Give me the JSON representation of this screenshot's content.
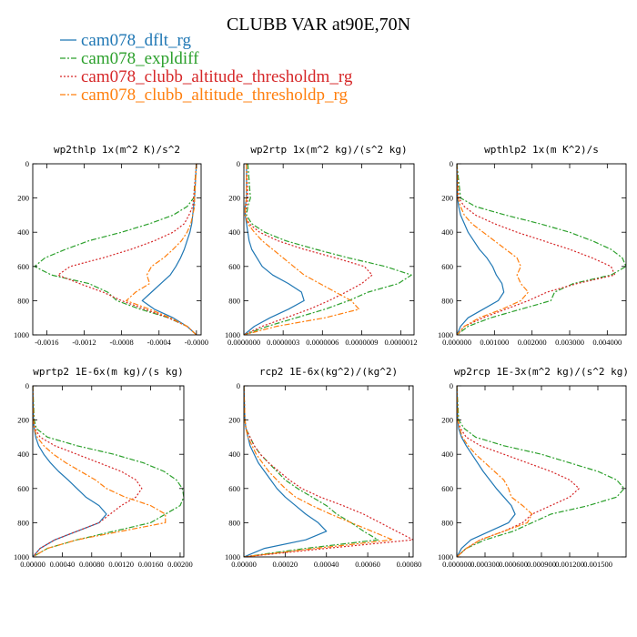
{
  "figure": {
    "title": "CLUBB VAR at90E,70N",
    "legend": [
      {
        "label": "cam078_dflt_rg",
        "color": "#1f77b4",
        "dash": "solid"
      },
      {
        "label": "cam078_expldiff",
        "color": "#2ca02c",
        "dash": "dashdot"
      },
      {
        "label": "cam078_clubb_altitude_thresholdm_rg",
        "color": "#d62728",
        "dash": "dot"
      },
      {
        "label": "cam078_clubb_altitude_thresholdp_rg",
        "color": "#ff7f0e",
        "dash": "dashdot"
      }
    ]
  },
  "chart_data": [
    {
      "type": "line",
      "title": "wp2thlp  1x(m^2 K)/s^2",
      "xlim": [
        -0.00175,
        5e-05
      ],
      "ylim": [
        0,
        1000
      ],
      "yticks": [
        0,
        200,
        400,
        600,
        800,
        1000
      ],
      "xticks": [
        {
          "v": -0.0016,
          "label": "-0.0016"
        },
        {
          "v": -0.0012,
          "label": "-0.0012"
        },
        {
          "v": -0.0008,
          "label": "-0.0008"
        },
        {
          "v": -0.0004,
          "label": "-0.0004"
        },
        {
          "v": 0.0,
          "label": "-0.0000"
        }
      ],
      "y": [
        0,
        200,
        250,
        300,
        350,
        400,
        450,
        500,
        550,
        600,
        650,
        700,
        750,
        800,
        850,
        900,
        950,
        1000
      ],
      "series": [
        {
          "name": "cam078_dflt_rg",
          "values": [
            0,
            -2e-05,
            -3e-05,
            -4e-05,
            -5e-05,
            -7e-05,
            -0.0001,
            -0.00013,
            -0.00017,
            -0.00022,
            -0.00028,
            -0.00038,
            -0.00048,
            -0.00058,
            -0.00045,
            -0.00025,
            -0.0001,
            0
          ]
        },
        {
          "name": "cam078_expldiff",
          "values": [
            0,
            -3e-05,
            -0.0001,
            -0.00025,
            -0.0005,
            -0.0008,
            -0.00115,
            -0.0014,
            -0.00162,
            -0.00173,
            -0.00155,
            -0.00115,
            -0.00095,
            -0.00085,
            -0.0006,
            -0.0003,
            -0.0001,
            0
          ]
        },
        {
          "name": "cam078_clubb_altitude_thresholdm_rg",
          "values": [
            0,
            -3e-05,
            -4e-05,
            -8e-05,
            -0.00013,
            -0.00025,
            -0.00045,
            -0.0007,
            -0.001,
            -0.00135,
            -0.00148,
            -0.00125,
            -0.001,
            -0.0008,
            -0.00055,
            -0.0003,
            -0.0001,
            0
          ]
        },
        {
          "name": "cam078_clubb_altitude_thresholdp_rg",
          "values": [
            0,
            -2e-05,
            -2e-05,
            -4e-05,
            -6e-05,
            -0.0001,
            -0.00016,
            -0.00025,
            -0.00035,
            -0.00048,
            -0.00053,
            -0.0005,
            -0.00065,
            -0.00075,
            -0.0005,
            -0.00028,
            -0.0001,
            0
          ]
        }
      ]
    },
    {
      "type": "line",
      "title": "wp2rtp  1x(m^2 kg)/(s^2 kg)",
      "xlim": [
        0,
        1.3e-06
      ],
      "ylim": [
        0,
        1000
      ],
      "yticks": [
        0,
        200,
        400,
        600,
        800,
        1000
      ],
      "xticks": [
        {
          "v": 0,
          "label": "0.0000000"
        },
        {
          "v": 3e-07,
          "label": "0.0000003"
        },
        {
          "v": 6e-07,
          "label": "0.0000006"
        },
        {
          "v": 9e-07,
          "label": "0.0000009"
        },
        {
          "v": 1.2e-06,
          "label": "0.0000012"
        }
      ],
      "y": [
        0,
        200,
        250,
        300,
        350,
        400,
        450,
        500,
        550,
        600,
        650,
        700,
        750,
        800,
        850,
        900,
        950,
        1000
      ],
      "series": [
        {
          "name": "cam078_dflt_rg",
          "values": [
            2e-08,
            2e-08,
            1e-08,
            1e-08,
            2e-08,
            3e-08,
            4e-08,
            6e-08,
            1e-07,
            1.4e-07,
            2.2e-07,
            3.4e-07,
            4.4e-07,
            4.6e-07,
            3.4e-07,
            2e-07,
            8e-08,
            0
          ]
        },
        {
          "name": "cam078_expldiff",
          "values": [
            3e-08,
            5e-08,
            3e-08,
            2e-08,
            6e-08,
            1.6e-07,
            3.2e-07,
            5.5e-07,
            8e-07,
            1.08e-06,
            1.28e-06,
            1.18e-06,
            9.5e-07,
            8e-07,
            6.2e-07,
            4e-07,
            1.8e-07,
            0
          ]
        },
        {
          "name": "cam078_clubb_altitude_thresholdm_rg",
          "values": [
            2e-08,
            3e-08,
            2e-08,
            1e-08,
            4e-08,
            1.2e-07,
            2.6e-07,
            4.6e-07,
            7e-07,
            9.2e-07,
            9.8e-07,
            9e-07,
            7.8e-07,
            6.5e-07,
            5e-07,
            3.2e-07,
            1.4e-07,
            0
          ]
        },
        {
          "name": "cam078_clubb_altitude_thresholdp_rg",
          "values": [
            2e-08,
            2e-08,
            1e-08,
            1e-08,
            3e-08,
            8e-08,
            1.4e-07,
            2.2e-07,
            3e-07,
            3.8e-07,
            4.6e-07,
            5.8e-07,
            7e-07,
            8.2e-07,
            8.8e-07,
            6.2e-07,
            2.5e-07,
            0
          ]
        }
      ]
    },
    {
      "type": "line",
      "title": "wpthlp2  1x(m K^2)/s",
      "xlim": [
        0,
        0.0045
      ],
      "ylim": [
        0,
        1000
      ],
      "yticks": [
        0,
        200,
        400,
        600,
        800,
        1000
      ],
      "xticks": [
        {
          "v": 0,
          "label": "0.000000"
        },
        {
          "v": 0.001,
          "label": "0.001000"
        },
        {
          "v": 0.002,
          "label": "0.002000"
        },
        {
          "v": 0.003,
          "label": "0.003000"
        },
        {
          "v": 0.004,
          "label": "0.004000"
        }
      ],
      "y": [
        0,
        200,
        250,
        300,
        350,
        400,
        450,
        500,
        550,
        600,
        650,
        700,
        750,
        800,
        850,
        900,
        950,
        1000
      ],
      "series": [
        {
          "name": "cam078_dflt_rg",
          "values": [
            0,
            2e-05,
            5e-05,
            0.0001,
            0.0002,
            0.0003,
            0.00045,
            0.0006,
            0.0008,
            0.00095,
            0.00105,
            0.0012,
            0.00125,
            0.0011,
            0.0007,
            0.0003,
            0.0001,
            0
          ]
        },
        {
          "name": "cam078_expldiff",
          "values": [
            0,
            0.0001,
            0.0005,
            0.0013,
            0.0022,
            0.003,
            0.0036,
            0.0041,
            0.0044,
            0.0045,
            0.0041,
            0.0031,
            0.0026,
            0.0025,
            0.0017,
            0.0009,
            0.0003,
            0
          ]
        },
        {
          "name": "cam078_clubb_altitude_thresholdm_rg",
          "values": [
            0,
            5e-05,
            0.0002,
            0.0005,
            0.001,
            0.0016,
            0.0023,
            0.003,
            0.0036,
            0.0041,
            0.0042,
            0.0032,
            0.0024,
            0.0019,
            0.0013,
            0.0007,
            0.0002,
            0
          ]
        },
        {
          "name": "cam078_clubb_altitude_thresholdp_rg",
          "values": [
            0,
            3e-05,
            0.0001,
            0.0002,
            0.0004,
            0.0007,
            0.001,
            0.0013,
            0.0016,
            0.0017,
            0.0016,
            0.0017,
            0.0019,
            0.0017,
            0.0012,
            0.0006,
            0.0002,
            0
          ]
        }
      ]
    },
    {
      "type": "line",
      "title": "wprtp2  1E-6x(m kg)/(s kg)",
      "xlim": [
        0,
        0.00205
      ],
      "ylim": [
        0,
        1000
      ],
      "yticks": [
        0,
        200,
        400,
        600,
        800,
        1000
      ],
      "xticks": [
        {
          "v": 0,
          "label": "0.00000"
        },
        {
          "v": 0.0004,
          "label": "0.00040"
        },
        {
          "v": 0.0008,
          "label": "0.00080"
        },
        {
          "v": 0.0012,
          "label": "0.00120"
        },
        {
          "v": 0.0016,
          "label": "0.00160"
        },
        {
          "v": 0.002,
          "label": "0.00200"
        }
      ],
      "y": [
        0,
        200,
        250,
        300,
        350,
        400,
        450,
        500,
        550,
        600,
        650,
        700,
        750,
        800,
        850,
        900,
        950,
        1000
      ],
      "series": [
        {
          "name": "cam078_dflt_rg",
          "values": [
            0,
            1e-05,
            2e-05,
            4e-05,
            8e-05,
            0.00015,
            0.00024,
            0.00035,
            0.00048,
            0.0006,
            0.00072,
            0.0009,
            0.001,
            0.0009,
            0.0006,
            0.0003,
            0.0001,
            0
          ]
        },
        {
          "name": "cam078_expldiff",
          "values": [
            0,
            2e-05,
            5e-05,
            0.0002,
            0.0006,
            0.0011,
            0.0015,
            0.00178,
            0.00195,
            0.00203,
            0.00205,
            0.002,
            0.0018,
            0.0016,
            0.0011,
            0.0006,
            0.0002,
            0
          ]
        },
        {
          "name": "cam078_clubb_altitude_thresholdm_rg",
          "values": [
            0,
            1e-05,
            3e-05,
            0.0001,
            0.0003,
            0.0006,
            0.0009,
            0.0012,
            0.0014,
            0.00148,
            0.0014,
            0.0012,
            0.00105,
            0.0009,
            0.0006,
            0.0003,
            0.0001,
            0
          ]
        },
        {
          "name": "cam078_clubb_altitude_thresholdp_rg",
          "values": [
            0,
            1e-05,
            2e-05,
            6e-05,
            0.00015,
            0.00028,
            0.00045,
            0.00065,
            0.00085,
            0.001,
            0.00125,
            0.0016,
            0.0018,
            0.0018,
            0.0012,
            0.0006,
            0.0002,
            0
          ]
        }
      ]
    },
    {
      "type": "line",
      "title": "rcp2  1E-6x(kg^2)/(kg^2)",
      "xlim": [
        0,
        0.00082
      ],
      "ylim": [
        0,
        1000
      ],
      "yticks": [
        0,
        200,
        400,
        600,
        800,
        1000
      ],
      "xticks": [
        {
          "v": 0,
          "label": "0.00000"
        },
        {
          "v": 0.0002,
          "label": "0.00020"
        },
        {
          "v": 0.0004,
          "label": "0.00040"
        },
        {
          "v": 0.0006,
          "label": "0.00060"
        },
        {
          "v": 0.0008,
          "label": "0.00080"
        }
      ],
      "y": [
        0,
        200,
        250,
        300,
        350,
        400,
        450,
        500,
        550,
        600,
        650,
        700,
        750,
        800,
        850,
        900,
        950,
        1000
      ],
      "series": [
        {
          "name": "cam078_dflt_rg",
          "values": [
            0,
            5e-06,
            1e-05,
            2e-05,
            3e-05,
            5e-05,
            7e-05,
            0.0001,
            0.00013,
            0.00016,
            0.0002,
            0.00025,
            0.0003,
            0.00036,
            0.0004,
            0.0003,
            0.0001,
            0
          ]
        },
        {
          "name": "cam078_expldiff",
          "values": [
            0,
            5e-06,
            1e-05,
            3e-05,
            5e-05,
            8e-05,
            0.00012,
            0.00016,
            0.0002,
            0.00026,
            0.00033,
            0.0004,
            0.00045,
            0.00052,
            0.00058,
            0.00065,
            0.0003,
            0
          ]
        },
        {
          "name": "cam078_clubb_altitude_thresholdm_rg",
          "values": [
            0,
            5e-06,
            1e-05,
            3e-05,
            5e-05,
            8e-05,
            0.00012,
            0.00017,
            0.00022,
            0.00028,
            0.00037,
            0.00048,
            0.00058,
            0.00066,
            0.00074,
            0.00082,
            0.0004,
            0
          ]
        },
        {
          "name": "cam078_clubb_altitude_thresholdp_rg",
          "values": [
            0,
            5e-06,
            1e-05,
            2e-05,
            4e-05,
            6e-05,
            9e-05,
            0.00012,
            0.00016,
            0.0002,
            0.00025,
            0.00033,
            0.00042,
            0.00052,
            0.00062,
            0.00072,
            0.00035,
            0
          ]
        }
      ]
    },
    {
      "type": "line",
      "title": "wp2rcp  1E-3x(m^2 kg)/(s^2 kg)",
      "xlim": [
        0,
        0.0018
      ],
      "ylim": [
        0,
        1000
      ],
      "yticks": [
        0,
        200,
        400,
        600,
        800,
        1000
      ],
      "xticks": [
        {
          "v": 0,
          "label": "0.000000"
        },
        {
          "v": 0.0003,
          "label": "0.000300"
        },
        {
          "v": 0.0006,
          "label": "0.000600"
        },
        {
          "v": 0.0009,
          "label": "0.000900"
        },
        {
          "v": 0.0012,
          "label": "0.001200"
        },
        {
          "v": 0.0015,
          "label": "0.001500"
        }
      ],
      "y": [
        0,
        200,
        250,
        300,
        350,
        400,
        450,
        500,
        550,
        600,
        650,
        700,
        750,
        800,
        850,
        900,
        950,
        1000
      ],
      "series": [
        {
          "name": "cam078_dflt_rg",
          "values": [
            0,
            1e-05,
            2e-05,
            5e-05,
            0.0001,
            0.00016,
            0.00022,
            0.00028,
            0.00035,
            0.00042,
            0.0005,
            0.00058,
            0.00062,
            0.00055,
            0.00035,
            0.00015,
            5e-05,
            0
          ]
        },
        {
          "name": "cam078_expldiff",
          "values": [
            0,
            2e-05,
            8e-05,
            0.0002,
            0.0005,
            0.0009,
            0.0012,
            0.0015,
            0.0017,
            0.00178,
            0.0017,
            0.0014,
            0.001,
            0.0008,
            0.0006,
            0.0003,
            0.0001,
            0
          ]
        },
        {
          "name": "cam078_clubb_altitude_thresholdm_rg",
          "values": [
            0,
            1e-05,
            4e-05,
            0.0001,
            0.00025,
            0.0005,
            0.00075,
            0.001,
            0.0012,
            0.0013,
            0.0012,
            0.001,
            0.0008,
            0.0007,
            0.0005,
            0.00025,
            0.0001,
            0
          ]
        },
        {
          "name": "cam078_clubb_altitude_thresholdp_rg",
          "values": [
            0,
            1e-05,
            3e-05,
            6e-05,
            0.00012,
            0.0002,
            0.0003,
            0.0004,
            0.0005,
            0.00055,
            0.00058,
            0.0007,
            0.0008,
            0.00075,
            0.0005,
            0.00025,
            0.0001,
            0
          ]
        }
      ]
    }
  ]
}
